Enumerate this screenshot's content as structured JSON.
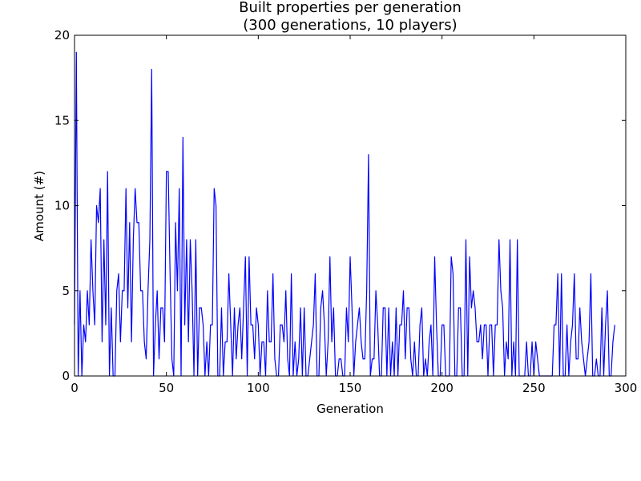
{
  "chart_data": {
    "type": "line",
    "title": "Built properties per generation",
    "subtitle": "(300 generations, 10 players)",
    "xlabel": "Generation",
    "ylabel": "Amount (#)",
    "xlim": [
      0,
      300
    ],
    "ylim": [
      0,
      20
    ],
    "x_ticks": [
      0,
      50,
      100,
      150,
      200,
      250,
      300
    ],
    "y_ticks": [
      0,
      5,
      10,
      15,
      20
    ],
    "grid": false,
    "legend": "none",
    "line_color": "#0000ff",
    "series": [
      {
        "values": [
          3,
          19,
          0,
          5,
          0,
          3,
          2,
          5,
          3,
          8,
          5,
          3,
          10,
          9,
          11,
          2,
          8,
          3,
          12,
          0,
          4,
          0,
          0,
          5,
          6,
          2,
          5,
          5,
          11,
          4,
          9,
          2,
          8,
          11,
          9,
          9,
          5,
          5,
          2,
          1,
          5,
          8,
          18,
          0,
          3,
          5,
          1,
          4,
          4,
          2,
          12,
          12,
          6,
          1,
          0,
          9,
          5,
          11,
          0,
          14,
          3,
          8,
          2,
          8,
          5,
          0,
          8,
          0,
          4,
          4,
          3,
          0,
          2,
          0,
          3,
          3,
          11,
          10,
          0,
          0,
          4,
          0,
          2,
          2,
          6,
          3,
          0,
          4,
          1,
          3,
          4,
          1,
          4,
          7,
          0,
          7,
          3,
          3,
          1,
          4,
          3,
          0,
          2,
          2,
          0,
          5,
          2,
          2,
          6,
          1,
          0,
          0,
          3,
          3,
          2,
          5,
          1,
          0,
          6,
          0,
          2,
          0,
          1,
          4,
          0,
          4,
          0,
          0,
          1,
          2,
          3,
          6,
          0,
          0,
          4,
          5,
          3,
          0,
          2,
          7,
          2,
          4,
          0,
          0,
          1,
          1,
          0,
          0,
          4,
          2,
          7,
          4,
          0,
          2,
          3,
          4,
          2,
          1,
          1,
          5,
          13,
          0,
          1,
          1,
          5,
          3,
          0,
          0,
          4,
          4,
          0,
          4,
          0,
          2,
          0,
          4,
          0,
          3,
          3,
          5,
          1,
          4,
          4,
          1,
          0,
          2,
          0,
          0,
          3,
          4,
          0,
          1,
          0,
          2,
          3,
          0,
          7,
          3,
          0,
          0,
          3,
          3,
          0,
          0,
          0,
          7,
          6,
          0,
          0,
          4,
          4,
          0,
          0,
          8,
          0,
          7,
          4,
          5,
          4,
          2,
          2,
          3,
          1,
          3,
          3,
          0,
          3,
          3,
          0,
          3,
          3,
          8,
          5,
          4,
          0,
          2,
          1,
          8,
          0,
          2,
          0,
          8,
          0,
          0,
          0,
          0,
          2,
          0,
          0,
          2,
          0,
          2,
          1,
          0,
          0,
          0,
          0,
          0,
          0,
          0,
          0,
          3,
          3,
          6,
          0,
          6,
          0,
          0,
          3,
          0,
          2,
          3,
          6,
          1,
          1,
          4,
          2,
          1,
          0,
          1,
          2,
          6,
          0,
          0,
          1,
          0,
          0,
          4,
          0,
          3,
          5,
          0,
          0,
          2,
          3
        ]
      }
    ]
  }
}
